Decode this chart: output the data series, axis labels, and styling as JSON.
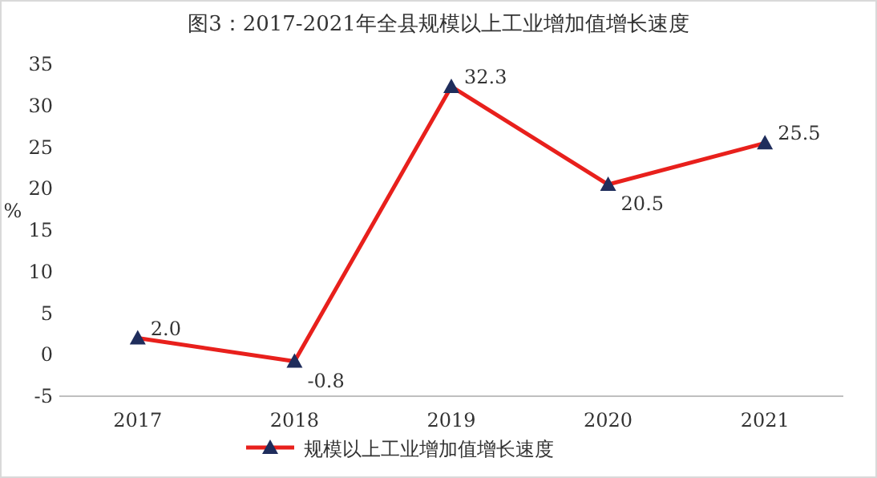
{
  "chart_data": {
    "type": "line",
    "title": "图3：2017-2021年全县规模以上工业增加值增长速度",
    "ylabel": "%",
    "categories": [
      "2017",
      "2018",
      "2019",
      "2020",
      "2021"
    ],
    "series": [
      {
        "name": "规模以上工业增加值增长速度",
        "color": "#e8201c",
        "colors": [
          "#1f2d5c",
          "#1f2d5c",
          "#1f2d5c",
          "#1f2d5c",
          "#1f2d5c"
        ],
        "values": [
          2.0,
          -0.8,
          32.3,
          20.5,
          25.5
        ],
        "value_labels": [
          "2.0",
          "-0.8",
          "32.3",
          "20.5",
          "25.5"
        ]
      }
    ],
    "ylim": [
      -5,
      35
    ],
    "yticks": [
      -5,
      0,
      5,
      10,
      15,
      20,
      25,
      30,
      35
    ],
    "marker": "triangle",
    "line_style": "solid",
    "grid": false,
    "legend": "bottom"
  }
}
